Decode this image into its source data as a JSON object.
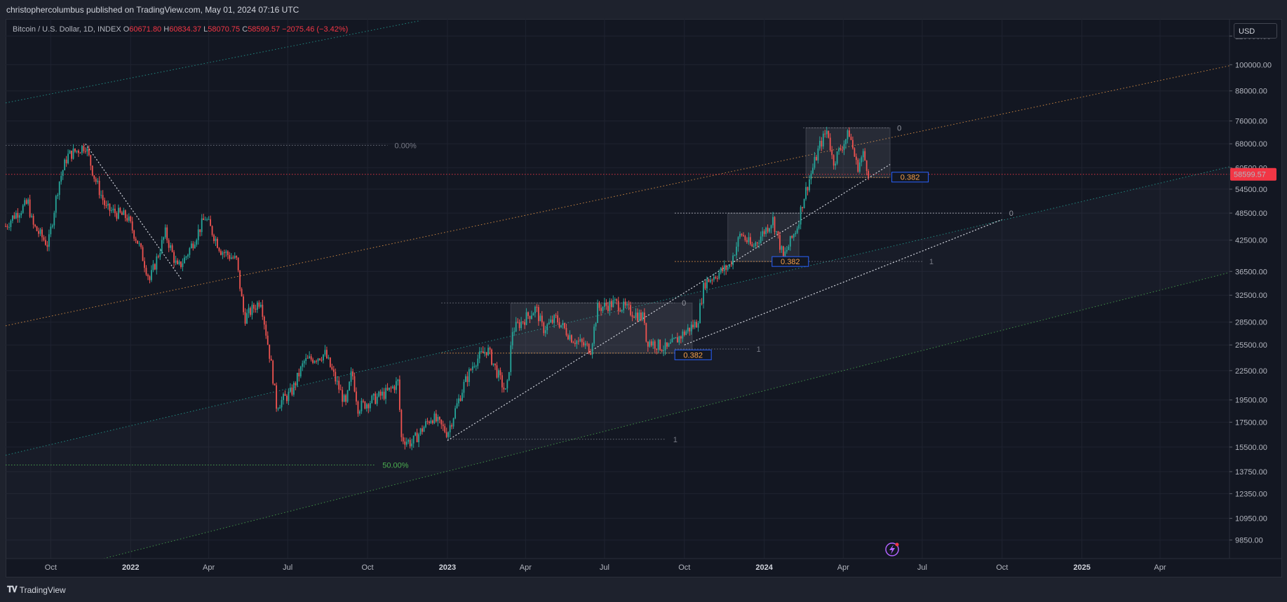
{
  "header": {
    "publish_text": "christophercolumbus published on TradingView.com, May 01, 2024 07:16 UTC"
  },
  "legend": {
    "symbol": "Bitcoin / U.S. Dollar, 1D, INDEX",
    "open_label": "O",
    "open": "60671.80",
    "high_label": "H",
    "high": "60834.37",
    "low_label": "L",
    "low": "58070.75",
    "close_label": "C",
    "close": "58599.57",
    "change": "−2075.46 (−3.42%)"
  },
  "currency": "USD",
  "footer": {
    "brand": "TradingView",
    "logo": "tv-logo-icon"
  },
  "colors": {
    "up": "#26a69a",
    "down": "#ef5350",
    "last_price": "#f23645",
    "orange_channel": "#f7a14a",
    "green_channel": "#4caf50",
    "fib_box": "#2962ff"
  },
  "chart_data": {
    "type": "candlestick",
    "title": "Bitcoin / U.S. Dollar, 1D, INDEX",
    "y_scale": "log",
    "ylim": [
      9000,
      125000
    ],
    "x_range": [
      "2021-08-10",
      "2025-06-20"
    ],
    "y_ticks": [
      "115000.00",
      "100000.00",
      "88000.00",
      "76000.00",
      "68000.00",
      "60500.00",
      "54500.00",
      "48500.00",
      "42500.00",
      "36500.00",
      "32500.00",
      "28500.00",
      "25500.00",
      "22500.00",
      "19500.00",
      "17500.00",
      "15500.00",
      "13750.00",
      "12350.00",
      "10950.00",
      "9850.00"
    ],
    "x_ticks": [
      {
        "label": "Oct",
        "date": "2021-10-01",
        "year": false
      },
      {
        "label": "2022",
        "date": "2022-01-01",
        "year": true
      },
      {
        "label": "Apr",
        "date": "2022-04-01",
        "year": false
      },
      {
        "label": "Jul",
        "date": "2022-07-01",
        "year": false
      },
      {
        "label": "Oct",
        "date": "2022-10-01",
        "year": false
      },
      {
        "label": "2023",
        "date": "2023-01-01",
        "year": true
      },
      {
        "label": "Apr",
        "date": "2023-04-01",
        "year": false
      },
      {
        "label": "Jul",
        "date": "2023-07-01",
        "year": false
      },
      {
        "label": "Oct",
        "date": "2023-10-01",
        "year": false
      },
      {
        "label": "2024",
        "date": "2024-01-01",
        "year": true
      },
      {
        "label": "Apr",
        "date": "2024-04-01",
        "year": false
      },
      {
        "label": "Jul",
        "date": "2024-07-01",
        "year": false
      },
      {
        "label": "Oct",
        "date": "2024-10-01",
        "year": false
      },
      {
        "label": "2025",
        "date": "2025-01-01",
        "year": true
      },
      {
        "label": "Apr",
        "date": "2025-04-01",
        "year": false
      }
    ],
    "last_price": {
      "value": 58599.57,
      "label": "58599.57"
    },
    "price_path": [
      [
        "2021-08-10",
        45500
      ],
      [
        "2021-08-20",
        48000
      ],
      [
        "2021-09-05",
        51000
      ],
      [
        "2021-09-10",
        45800
      ],
      [
        "2021-09-28",
        41500
      ],
      [
        "2021-10-10",
        56000
      ],
      [
        "2021-10-20",
        64000
      ],
      [
        "2021-11-10",
        67500
      ],
      [
        "2021-11-20",
        58000
      ],
      [
        "2021-12-04",
        49500
      ],
      [
        "2021-12-28",
        47500
      ],
      [
        "2022-01-10",
        41800
      ],
      [
        "2022-01-23",
        35000
      ],
      [
        "2022-02-10",
        44000
      ],
      [
        "2022-02-24",
        37000
      ],
      [
        "2022-03-05",
        39000
      ],
      [
        "2022-03-28",
        47500
      ],
      [
        "2022-04-15",
        40500
      ],
      [
        "2022-05-03",
        38500
      ],
      [
        "2022-05-12",
        29000
      ],
      [
        "2022-05-31",
        31800
      ],
      [
        "2022-06-13",
        22500
      ],
      [
        "2022-06-18",
        19000
      ],
      [
        "2022-07-05",
        20200
      ],
      [
        "2022-07-20",
        23500
      ],
      [
        "2022-08-13",
        24400
      ],
      [
        "2022-09-06",
        19000
      ],
      [
        "2022-09-13",
        22500
      ],
      [
        "2022-09-20",
        18800
      ],
      [
        "2022-10-25",
        20300
      ],
      [
        "2022-11-05",
        21300
      ],
      [
        "2022-11-09",
        16200
      ],
      [
        "2022-11-21",
        15800
      ],
      [
        "2022-12-14",
        18000
      ],
      [
        "2023-01-01",
        16600
      ],
      [
        "2023-01-20",
        21000
      ],
      [
        "2023-02-01",
        23500
      ],
      [
        "2023-02-16",
        25000
      ],
      [
        "2023-03-10",
        20000
      ],
      [
        "2023-03-17",
        27400
      ],
      [
        "2023-04-13",
        30500
      ],
      [
        "2023-04-21",
        27500
      ],
      [
        "2023-05-06",
        29000
      ],
      [
        "2023-05-25",
        26300
      ],
      [
        "2023-06-15",
        25000
      ],
      [
        "2023-06-23",
        30500
      ],
      [
        "2023-07-13",
        31300
      ],
      [
        "2023-08-16",
        29000
      ],
      [
        "2023-08-18",
        26100
      ],
      [
        "2023-09-11",
        25000
      ],
      [
        "2023-09-30",
        27000
      ],
      [
        "2023-10-16",
        28500
      ],
      [
        "2023-10-24",
        34500
      ],
      [
        "2023-11-01",
        35400
      ],
      [
        "2023-11-22",
        37500
      ],
      [
        "2023-12-05",
        44000
      ],
      [
        "2023-12-18",
        41000
      ],
      [
        "2024-01-11",
        47000
      ],
      [
        "2024-01-23",
        39000
      ],
      [
        "2024-02-08",
        45500
      ],
      [
        "2024-02-15",
        52000
      ],
      [
        "2024-03-05",
        67500
      ],
      [
        "2024-03-14",
        73000
      ],
      [
        "2024-03-20",
        62000
      ],
      [
        "2024-04-08",
        71800
      ],
      [
        "2024-04-17",
        60500
      ],
      [
        "2024-04-24",
        64500
      ],
      [
        "2024-05-01",
        58600
      ]
    ],
    "channels": [
      {
        "name": "orange-channel-line",
        "color": "#f7a14a",
        "p1": [
          "2021-08-10",
          28000
        ],
        "p2": [
          "2025-06-20",
          99500
        ]
      },
      {
        "name": "upper-green-channel-line",
        "color": "#26a69a",
        "p1": [
          "2021-08-10",
          83000
        ],
        "p2": [
          "2022-12-01",
          124000
        ]
      },
      {
        "name": "middle-teal-channel-line",
        "color": "#26a69a",
        "p1": [
          "2021-08-10",
          14900
        ],
        "p2": [
          "2025-06-20",
          60800
        ]
      },
      {
        "name": "lower-green-channel-line",
        "color": "#4caf50",
        "p1": [
          "2021-12-01",
          9000
        ],
        "p2": [
          "2025-06-20",
          36300
        ]
      }
    ],
    "trendlines": [
      {
        "name": "downtrend-dotted-line",
        "p1": [
          "2021-11-10",
          68000
        ],
        "p2": [
          "2022-03-01",
          35000
        ]
      },
      {
        "name": "uptrend-dotted-line-a",
        "p1": [
          "2023-01-01",
          16000
        ],
        "p2": [
          "2024-05-25",
          61500
        ]
      },
      {
        "name": "uptrend-dotted-line-b",
        "p1": [
          "2023-10-01",
          25500
        ],
        "p2": [
          "2024-10-01",
          47000
        ]
      }
    ],
    "hlines": [
      {
        "name": "ath-dotted-line",
        "y": 67500,
        "x1": "2021-08-10",
        "x2": "2022-10-24",
        "color": "#787b86",
        "label": "0.00%",
        "label_color": "#787b86"
      },
      {
        "name": "fifty-percent-line",
        "y": 14200,
        "x1": "2021-08-10",
        "x2": "2022-10-10",
        "color": "#4caf50",
        "label": "50.00%",
        "label_color": "#4caf50"
      },
      {
        "name": "last-price-line",
        "y": 58599.57,
        "x1": "2021-08-10",
        "x2": "2025-06-20",
        "color": "#f23645",
        "label": "",
        "label_color": "#f23645"
      },
      {
        "name": "lower-fib-one-line",
        "y": 16100,
        "x1": "2023-01-01",
        "x2": "2023-09-10",
        "color": "#787b86",
        "label": "1",
        "label_color": "#787b86"
      },
      {
        "name": "mid-fib-zero-line",
        "y": 31300,
        "x1": "2022-12-25",
        "x2": "2023-09-20",
        "color": "#787b86",
        "label": "0",
        "label_color": "#9598a1"
      },
      {
        "name": "mid-fib-one-line",
        "y": 25000,
        "x1": "2023-09-20",
        "x2": "2023-12-15",
        "color": "#787b86",
        "label": "1",
        "label_color": "#787b86"
      },
      {
        "name": "mid-fib-0382-line",
        "y": 24500,
        "x1": "2022-12-25",
        "x2": "2023-09-20",
        "color": "#f7a14a",
        "label": "",
        "label_color": "#f7a14a"
      },
      {
        "name": "upper-fib-zero-line",
        "y": 48500,
        "x1": "2023-09-20",
        "x2": "2024-10-01",
        "color": "#d1d4dc",
        "label": "0",
        "label_color": "#9598a1"
      },
      {
        "name": "upper-fib-0382-line",
        "y": 38300,
        "x1": "2023-09-20",
        "x2": "2024-02-15",
        "color": "#f7a14a",
        "label": "",
        "label_color": "#f7a14a"
      },
      {
        "name": "upper-fib-one-line",
        "y": 38300,
        "x1": "2024-02-15",
        "x2": "2024-07-01",
        "color": "#787b86",
        "label": "1",
        "label_color": "#787b86"
      },
      {
        "name": "top-fib-zero-line",
        "y": 73500,
        "x1": "2024-02-15",
        "x2": "2024-05-25",
        "color": "#787b86",
        "label": "0",
        "label_color": "#9598a1"
      },
      {
        "name": "top-fib-0382-line",
        "y": 57700,
        "x1": "2024-02-15",
        "x2": "2024-05-25",
        "color": "#f7a14a",
        "label": "",
        "label_color": "#f7a14a"
      }
    ],
    "boxes": [
      {
        "name": "range-box-2023",
        "x1": "2023-03-15",
        "x2": "2023-10-10",
        "y1": 24500,
        "y2": 31300
      },
      {
        "name": "range-box-late-2023",
        "x1": "2023-11-20",
        "x2": "2024-02-10",
        "y1": 38300,
        "y2": 48500
      },
      {
        "name": "range-box-2024",
        "x1": "2024-02-18",
        "x2": "2024-05-25",
        "y1": 57700,
        "y2": 73500
      }
    ],
    "fib_labels": [
      {
        "name": "fib-label-0382-a",
        "text": "0.382",
        "date": "2023-09-20",
        "y": 24300
      },
      {
        "name": "fib-label-0382-b",
        "text": "0.382",
        "date": "2024-01-10",
        "y": 38300
      },
      {
        "name": "fib-label-0382-c",
        "text": "0.382",
        "date": "2024-05-27",
        "y": 57800
      }
    ]
  }
}
